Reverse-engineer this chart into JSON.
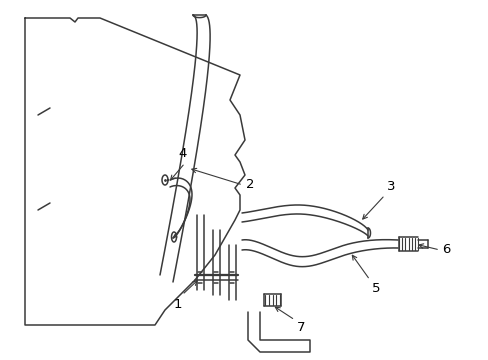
{
  "bg_color": "#ffffff",
  "lc": "#3a3a3a",
  "lw": 1.1,
  "fig_w": 4.89,
  "fig_h": 3.6,
  "dpi": 100,
  "font_size": 9.5
}
